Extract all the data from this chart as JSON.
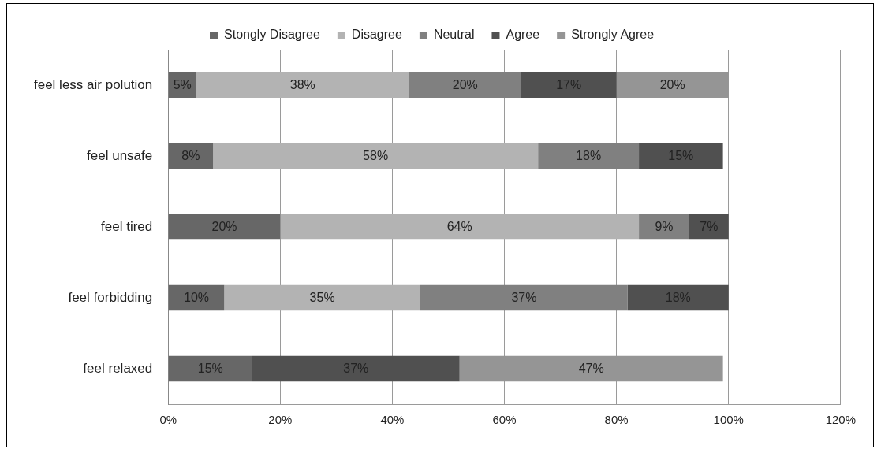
{
  "chart_data": {
    "type": "bar",
    "orientation": "horizontal",
    "stacked": true,
    "legend": "top",
    "grid": "x",
    "categories": [
      "feel less air polution",
      "feel unsafe",
      "feel tired",
      "feel forbidding",
      "feel relaxed"
    ],
    "xlim": [
      0,
      120
    ],
    "xticks": [
      {
        "value": 0,
        "label": "0%"
      },
      {
        "value": 20,
        "label": "20%"
      },
      {
        "value": 40,
        "label": "40%"
      },
      {
        "value": 60,
        "label": "60%"
      },
      {
        "value": 80,
        "label": "80%"
      },
      {
        "value": 100,
        "label": "100%"
      },
      {
        "value": 120,
        "label": "120%"
      }
    ],
    "series": [
      {
        "name": "Stongly Disagree",
        "color": "#676767",
        "values": [
          5,
          8,
          20,
          10,
          15
        ],
        "value_labels": [
          "5%",
          "8%",
          "20%",
          "10%",
          "15%"
        ]
      },
      {
        "name": "Disagree",
        "color": "#b3b3b3",
        "values": [
          38,
          58,
          64,
          35,
          null
        ],
        "value_labels": [
          "38%",
          "58%",
          "64%",
          "35%",
          null
        ]
      },
      {
        "name": "Neutral",
        "color": "#808080",
        "values": [
          20,
          18,
          9,
          37,
          null
        ],
        "value_labels": [
          "20%",
          "18%",
          "9%",
          "37%",
          null
        ]
      },
      {
        "name": "Agree",
        "color": "#505050",
        "values": [
          17,
          15,
          7,
          18,
          37
        ],
        "value_labels": [
          "17%",
          "15%",
          "7%",
          "18%",
          "37%"
        ]
      },
      {
        "name": "Strongly Agree",
        "color": "#959595",
        "values": [
          20,
          null,
          null,
          null,
          47
        ],
        "value_labels": [
          "20%",
          null,
          null,
          null,
          "47%"
        ]
      }
    ]
  }
}
